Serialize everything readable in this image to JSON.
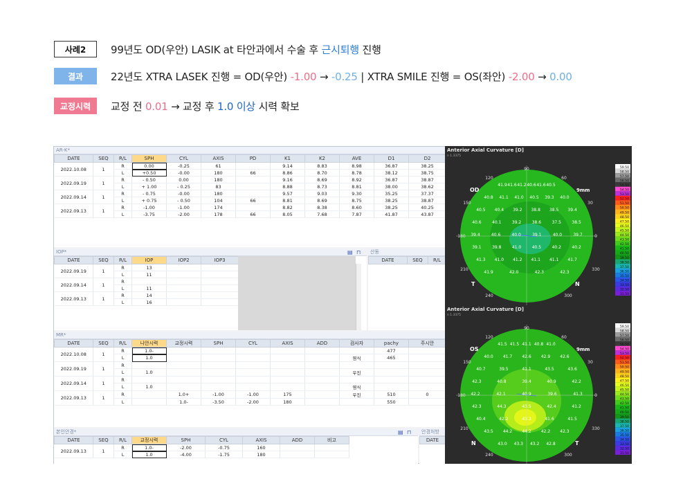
{
  "header": {
    "case": {
      "tag": "사례2",
      "text_a": "99년도 OD(우안) LASIK at 타안과에서 수술 후 ",
      "text_hl": "근시퇴행",
      "text_b": " 진행"
    },
    "result": {
      "tag": "결과",
      "t1": "22년도 XTRA LASEK  진행  = OD(우안) ",
      "v1": "-1.00",
      "arrow1": " → ",
      "v2": "-0.25",
      "t2": "  | XTRA SMILE 진행 =  OS(좌안) ",
      "v3": "-2.00",
      "arrow2": " → ",
      "v4": "0.00"
    },
    "vision": {
      "tag": "교정시력",
      "t1": "교정 전 ",
      "v1": "0.01",
      "t2": " → 교정 후 ",
      "v2": "1.0 이상",
      "t3": " 시력 확보"
    }
  },
  "colors": {
    "blue": "#2d7fd6",
    "pink": "#ef6e8a",
    "sky": "#6fb0ea",
    "navy": "#1f64c8"
  },
  "ark": {
    "title": "AR-K*",
    "headers": [
      "DATE",
      "SEQ",
      "R/L",
      "SPH",
      "CYL",
      "AXIS",
      "PD",
      "K1",
      "K2",
      "AVE",
      "D1",
      "D2"
    ],
    "rows": [
      {
        "date": "2022.10.08",
        "seq": "1",
        "r": [
          "R",
          "0.00",
          "-0.25",
          "61",
          "",
          "9.14",
          "8.83",
          "8.98",
          "36.87",
          "38.25"
        ],
        "l": [
          "L",
          "+0.50",
          "-0.00",
          "180",
          "66",
          "8.86",
          "8.70",
          "8.78",
          "38.12",
          "38.75"
        ]
      },
      {
        "date": "2022.09.19",
        "seq": "1",
        "r": [
          "R",
          "- 0.50",
          "0.00",
          "180",
          "",
          "9.16",
          "8.69",
          "8.92",
          "36.87",
          "38.87"
        ],
        "l": [
          "L",
          "+ 1.00",
          "- 0.25",
          "83",
          "",
          "8.88",
          "8.73",
          "8.81",
          "38.00",
          "38.62"
        ]
      },
      {
        "date": "2022.09.14",
        "seq": "1",
        "r": [
          "R",
          "- 0.75",
          "-0.00",
          "180",
          "",
          "9.57",
          "9.03",
          "9.30",
          "35.25",
          "37.37"
        ],
        "l": [
          "L",
          "+ 0.75",
          "- 0.50",
          "104",
          "66",
          "8.81",
          "8.69",
          "8.75",
          "38.25",
          "38.87"
        ]
      },
      {
        "date": "2022.09.13",
        "seq": "1",
        "r": [
          "R",
          "-1.00",
          "-1.00",
          "174",
          "",
          "8.82",
          "8.38",
          "8.60",
          "38.25",
          "40.25"
        ],
        "l": [
          "L",
          "-3.75",
          "-2.00",
          "178",
          "66",
          "8.05",
          "7.68",
          "7.87",
          "41.87",
          "43.87"
        ]
      }
    ]
  },
  "iop": {
    "title": "IOP*",
    "headers": [
      "DATE",
      "SEQ",
      "R/L",
      "IOP",
      "IOP2",
      "IOP3"
    ],
    "rows": [
      {
        "date": "2022.09.19",
        "seq": "1",
        "r": [
          "R",
          "13",
          "",
          ""
        ],
        "l": [
          "L",
          "11",
          "",
          ""
        ]
      },
      {
        "date": "2022.09.14",
        "seq": "1",
        "r": [
          "R",
          "",
          "",
          ""
        ],
        "l": [
          "L",
          "11",
          "",
          ""
        ]
      },
      {
        "date": "2022.09.13",
        "seq": "1",
        "r": [
          "R",
          "14",
          "",
          ""
        ],
        "l": [
          "L",
          "16",
          "",
          ""
        ]
      }
    ]
  },
  "sangdong": {
    "title": "산동",
    "headers": [
      "DATE",
      "SEQ",
      "R/L"
    ]
  },
  "mr": {
    "title": "MR*",
    "headers": [
      "DATE",
      "SEQ",
      "R/L",
      "나안시력",
      "교정시력",
      "SPH",
      "CYL",
      "AXIS",
      "ADD",
      "검사자",
      "pachy",
      "주시안"
    ],
    "rows": [
      {
        "date": "2022.10.08",
        "seq": "1",
        "r": [
          "R",
          "1.0-",
          "",
          "",
          "",
          "",
          "",
          "",
          "477",
          ""
        ],
        "l": [
          "L",
          "1.0",
          "",
          "",
          "",
          "",
          "",
          "영식",
          "465",
          ""
        ]
      },
      {
        "date": "2022.09.19",
        "seq": "1",
        "r": [
          "R",
          "",
          "",
          "",
          "",
          "",
          "",
          "",
          "",
          ""
        ],
        "l": [
          "L",
          "1.0",
          "",
          "",
          "",
          "",
          "",
          "우진",
          "",
          ""
        ]
      },
      {
        "date": "2022.09.14",
        "seq": "1",
        "r": [
          "R",
          "",
          "",
          "",
          "",
          "",
          "",
          "",
          "",
          ""
        ],
        "l": [
          "L",
          "1.0",
          "",
          "",
          "",
          "",
          "",
          "영식",
          "",
          ""
        ]
      },
      {
        "date": "2022.09.13",
        "seq": "1",
        "r": [
          "R",
          "",
          "1.0+",
          "-1.00",
          "-1.00",
          "175",
          "",
          "우진",
          "510",
          "0"
        ],
        "l": [
          "L",
          "",
          "1.0-",
          "-3.50",
          "-2.00",
          "180",
          "",
          "",
          "550",
          ""
        ]
      }
    ]
  },
  "glasses": {
    "title": "본인안경*",
    "headers": [
      "DATE",
      "SEQ",
      "R/L",
      "교정시력",
      "SPH",
      "CYL",
      "AXIS",
      "ADD",
      "비고"
    ],
    "rows": [
      {
        "date": "2022.09.13",
        "seq": "1",
        "r": [
          "R",
          "1.0-",
          "-2.00",
          "-0.75",
          "160",
          "",
          ""
        ],
        "l": [
          "L",
          "1.0",
          "-4.00",
          "-1.75",
          "180",
          "",
          ""
        ]
      }
    ]
  },
  "glasses_rx": {
    "title": "안경처방",
    "headers": [
      "DATE"
    ]
  },
  "topo": [
    {
      "title": "Anterior Axial Curvature  [D]",
      "sub": "n 1.3375",
      "eye": "OD",
      "size": "9mm",
      "nasal": "N",
      "temporal": "T",
      "deg": [
        "90",
        "120",
        "60",
        "150",
        "30",
        "180",
        "0",
        "210",
        "330",
        "240",
        "300"
      ],
      "values": [
        "41.9",
        "41.6",
        "41.2",
        "40.6",
        "41.6",
        "40.5",
        "40.8",
        "41.1",
        "41.0",
        "40.5",
        "39.3",
        "40.0",
        "40.5",
        "40.4",
        "39.2",
        "38.8",
        "38.5",
        "39.4",
        "40.6",
        "40.1",
        "39.2",
        "38.6",
        "37.5",
        "38.5",
        "39.4",
        "40.6",
        "40.0",
        "39.1",
        "40.0",
        "39.7",
        "39.1",
        "39.8",
        "41.0",
        "40.5",
        "40.2",
        "40.2",
        "41.3",
        "41.0",
        "41.2",
        "41.1",
        "41.1",
        "41.7",
        "41.9",
        "42.0",
        "42.3",
        "42.3"
      ],
      "scale": [
        "59.50",
        "58.50",
        "57.50",
        "56.50",
        "55.50",
        "54.50",
        "53.50",
        "52.50",
        "51.50",
        "50.50",
        "49.50",
        "48.50",
        "47.50",
        "46.50",
        "45.50",
        "44.50",
        "43.50",
        "42.50",
        "41.50",
        "40.50",
        "39.50",
        "38.50",
        "37.50",
        "36.50",
        "35.50",
        "34.50",
        "33.50",
        "32.50",
        "31.50"
      ]
    },
    {
      "title": "Anterior Axial Curvature  [D]",
      "sub": "n 1.3375",
      "eye": "OS",
      "size": "9mm",
      "nasal": "N",
      "temporal": "T",
      "deg": [
        "90",
        "120",
        "60",
        "150",
        "30",
        "180",
        "0",
        "210",
        "330",
        "240",
        "300"
      ],
      "values": [
        "41.5",
        "41.5",
        "41.1",
        "40.8",
        "41.0",
        "40.0",
        "41.7",
        "42.6",
        "42.9",
        "42.6",
        "40.7",
        "39.5",
        "41.1",
        "43.5",
        "43.6",
        "42.3",
        "40.8",
        "39.4",
        "40.9",
        "42.2",
        "42.2",
        "42.1",
        "40.9",
        "39.6",
        "41.3",
        "42.3",
        "44.3",
        "43.5",
        "42.4",
        "41.2",
        "40.4",
        "42.2",
        "43.3",
        "41.6",
        "41.5",
        "43.5",
        "44.2",
        "44.2",
        "42.2",
        "42.3",
        "43.0",
        "43.3",
        "43.2",
        "42.8"
      ],
      "scale": [
        "59.50",
        "58.50",
        "57.50",
        "56.50",
        "55.50",
        "54.50",
        "53.50",
        "52.50",
        "51.50",
        "50.50",
        "49.50",
        "48.50",
        "47.50",
        "46.50",
        "45.50",
        "44.50",
        "43.50",
        "42.50",
        "41.50",
        "40.50",
        "39.50",
        "38.50",
        "37.50",
        "36.50",
        "35.50",
        "34.50",
        "33.50",
        "32.50",
        "31.50"
      ]
    }
  ]
}
